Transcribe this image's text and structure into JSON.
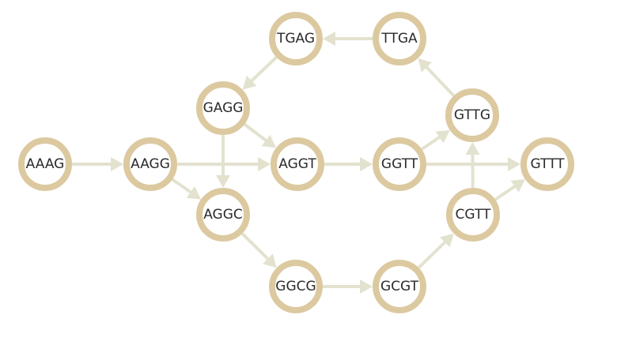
{
  "graph": {
    "nodes": [
      {
        "id": "AAAG",
        "label": "AAAG"
      },
      {
        "id": "AAGG",
        "label": "AAGG"
      },
      {
        "id": "GAGG",
        "label": "GAGG"
      },
      {
        "id": "AGGC",
        "label": "AGGC"
      },
      {
        "id": "AGGT",
        "label": "AGGT"
      },
      {
        "id": "TGAG",
        "label": "TGAG"
      },
      {
        "id": "TTGA",
        "label": "TTGA"
      },
      {
        "id": "GTTG",
        "label": "GTTG"
      },
      {
        "id": "GGTT",
        "label": "GGTT"
      },
      {
        "id": "GTTT",
        "label": "GTTT"
      },
      {
        "id": "CGTT",
        "label": "CGTT"
      },
      {
        "id": "GGCG",
        "label": "GGCG"
      },
      {
        "id": "GCGT",
        "label": "GCGT"
      }
    ],
    "edges": [
      {
        "from": "AAAG",
        "to": "AAGG"
      },
      {
        "from": "AAGG",
        "to": "AGGT"
      },
      {
        "from": "AAGG",
        "to": "AGGC"
      },
      {
        "from": "GAGG",
        "to": "AGGC"
      },
      {
        "from": "GAGG",
        "to": "AGGT"
      },
      {
        "from": "TGAG",
        "to": "GAGG"
      },
      {
        "from": "TTGA",
        "to": "TGAG"
      },
      {
        "from": "GTTG",
        "to": "TTGA"
      },
      {
        "from": "GGTT",
        "to": "GTTG"
      },
      {
        "from": "AGGT",
        "to": "GGTT"
      },
      {
        "from": "GGTT",
        "to": "GTTT"
      },
      {
        "from": "CGTT",
        "to": "GTTG"
      },
      {
        "from": "CGTT",
        "to": "GTTT"
      },
      {
        "from": "GCGT",
        "to": "CGTT"
      },
      {
        "from": "GGCG",
        "to": "GCGT"
      },
      {
        "from": "AGGC",
        "to": "GGCG"
      }
    ]
  }
}
